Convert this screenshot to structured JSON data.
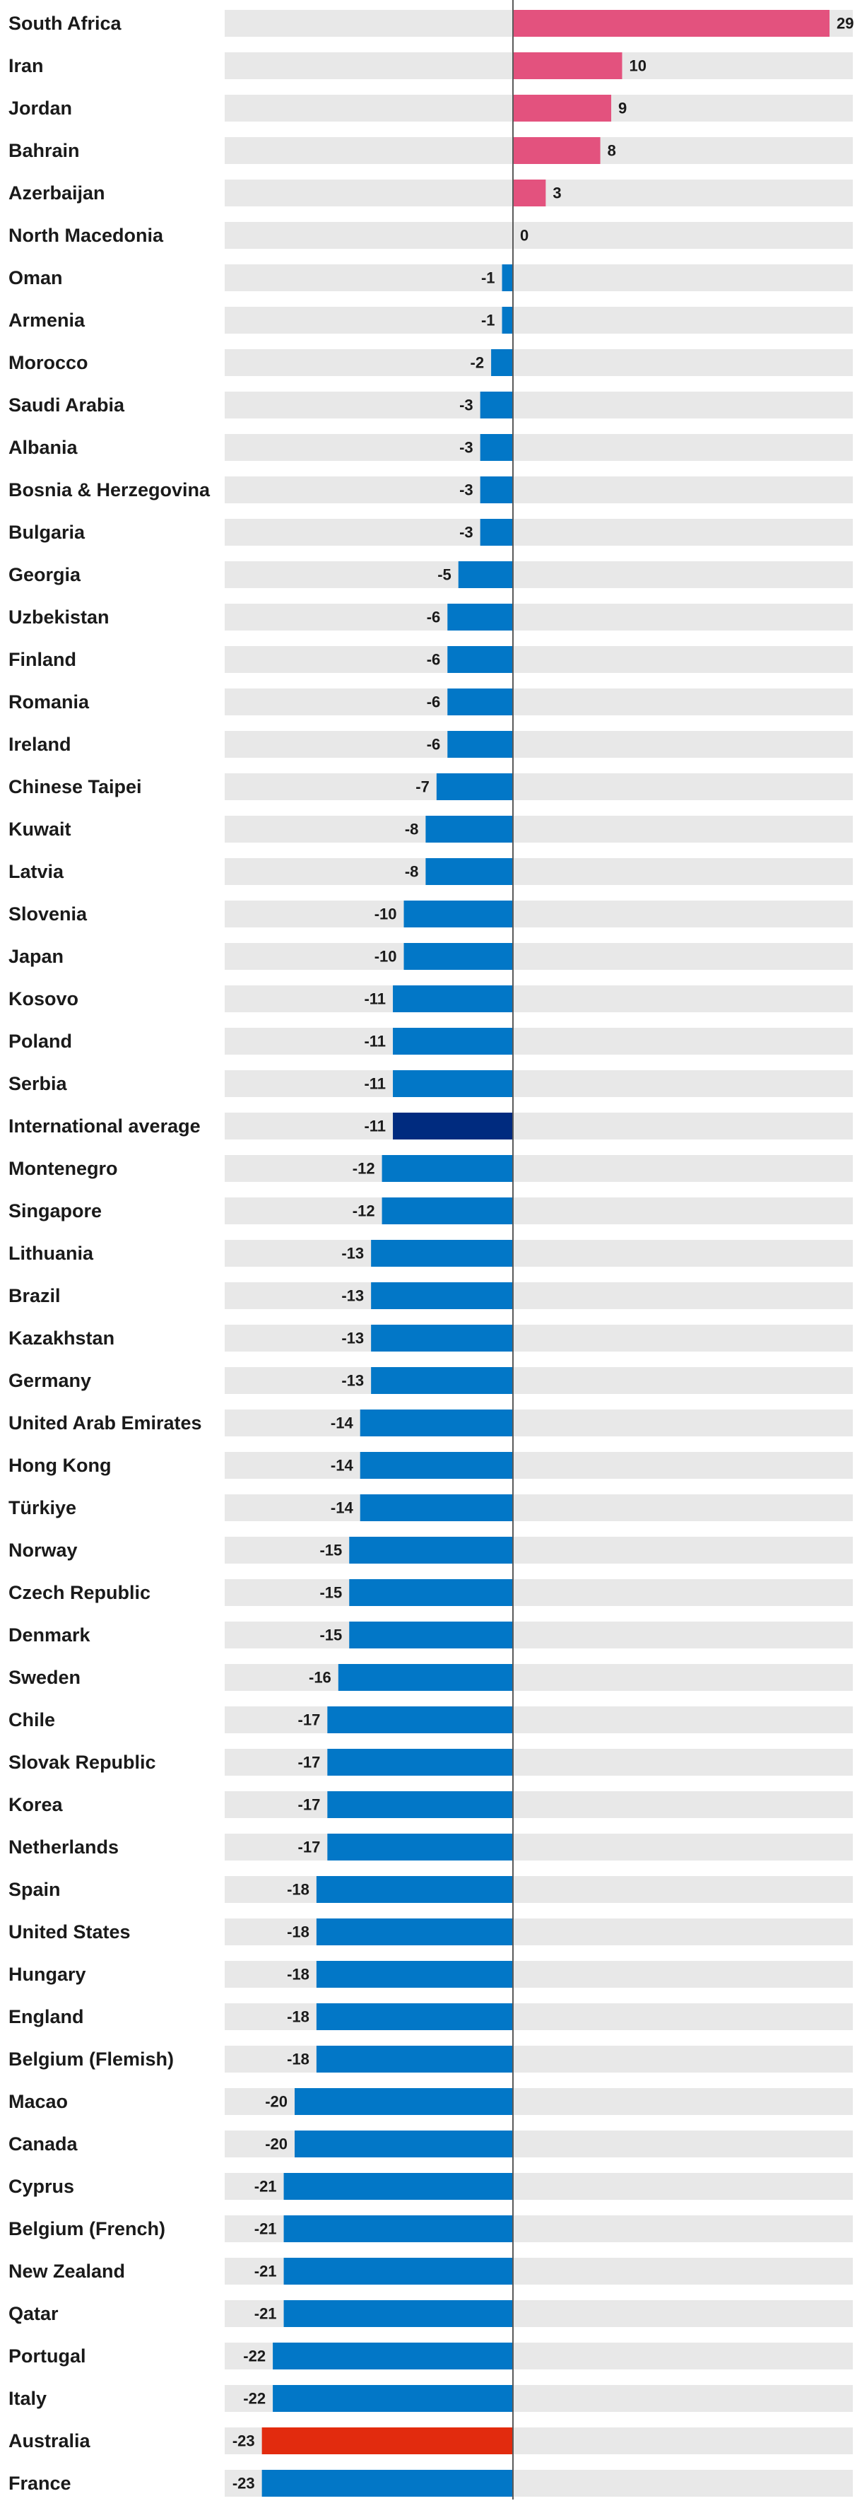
{
  "chart_data": {
    "type": "bar",
    "orientation": "horizontal",
    "xlim": [
      -27,
      31
    ],
    "colors": {
      "positive": "#e3527e",
      "negative": "#0277c7",
      "average": "#002b7f",
      "australia": "#e22b0e",
      "track": "#e8e8e8",
      "axis": "#5a5a5a",
      "text": "#1a1a1a"
    },
    "rows": [
      {
        "label": "South Africa",
        "value": 29,
        "highlight": "none"
      },
      {
        "label": "Iran",
        "value": 10,
        "highlight": "none"
      },
      {
        "label": "Jordan",
        "value": 9,
        "highlight": "none"
      },
      {
        "label": "Bahrain",
        "value": 8,
        "highlight": "none"
      },
      {
        "label": "Azerbaijan",
        "value": 3,
        "highlight": "none"
      },
      {
        "label": "North Macedonia",
        "value": 0,
        "highlight": "none"
      },
      {
        "label": "Oman",
        "value": -1,
        "highlight": "none"
      },
      {
        "label": "Armenia",
        "value": -1,
        "highlight": "none"
      },
      {
        "label": "Morocco",
        "value": -2,
        "highlight": "none"
      },
      {
        "label": "Saudi Arabia",
        "value": -3,
        "highlight": "none"
      },
      {
        "label": "Albania",
        "value": -3,
        "highlight": "none"
      },
      {
        "label": "Bosnia & Herzegovina",
        "value": -3,
        "highlight": "none"
      },
      {
        "label": "Bulgaria",
        "value": -3,
        "highlight": "none"
      },
      {
        "label": "Georgia",
        "value": -5,
        "highlight": "none"
      },
      {
        "label": "Uzbekistan",
        "value": -6,
        "highlight": "none"
      },
      {
        "label": "Finland",
        "value": -6,
        "highlight": "none"
      },
      {
        "label": "Romania",
        "value": -6,
        "highlight": "none"
      },
      {
        "label": "Ireland",
        "value": -6,
        "highlight": "none"
      },
      {
        "label": "Chinese Taipei",
        "value": -7,
        "highlight": "none"
      },
      {
        "label": "Kuwait",
        "value": -8,
        "highlight": "none"
      },
      {
        "label": "Latvia",
        "value": -8,
        "highlight": "none"
      },
      {
        "label": "Slovenia",
        "value": -10,
        "highlight": "none"
      },
      {
        "label": "Japan",
        "value": -10,
        "highlight": "none"
      },
      {
        "label": "Kosovo",
        "value": -11,
        "highlight": "none"
      },
      {
        "label": "Poland",
        "value": -11,
        "highlight": "none"
      },
      {
        "label": "Serbia",
        "value": -11,
        "highlight": "none"
      },
      {
        "label": "International average",
        "value": -11,
        "highlight": "average"
      },
      {
        "label": "Montenegro",
        "value": -12,
        "highlight": "none"
      },
      {
        "label": "Singapore",
        "value": -12,
        "highlight": "none"
      },
      {
        "label": "Lithuania",
        "value": -13,
        "highlight": "none"
      },
      {
        "label": "Brazil",
        "value": -13,
        "highlight": "none"
      },
      {
        "label": "Kazakhstan",
        "value": -13,
        "highlight": "none"
      },
      {
        "label": "Germany",
        "value": -13,
        "highlight": "none"
      },
      {
        "label": "United Arab Emirates",
        "value": -14,
        "highlight": "none"
      },
      {
        "label": "Hong Kong",
        "value": -14,
        "highlight": "none"
      },
      {
        "label": "Türkiye",
        "value": -14,
        "highlight": "none"
      },
      {
        "label": "Norway",
        "value": -15,
        "highlight": "none"
      },
      {
        "label": "Czech Republic",
        "value": -15,
        "highlight": "none"
      },
      {
        "label": "Denmark",
        "value": -15,
        "highlight": "none"
      },
      {
        "label": "Sweden",
        "value": -16,
        "highlight": "none"
      },
      {
        "label": "Chile",
        "value": -17,
        "highlight": "none"
      },
      {
        "label": "Slovak Republic",
        "value": -17,
        "highlight": "none"
      },
      {
        "label": "Korea",
        "value": -17,
        "highlight": "none"
      },
      {
        "label": "Netherlands",
        "value": -17,
        "highlight": "none"
      },
      {
        "label": "Spain",
        "value": -18,
        "highlight": "none"
      },
      {
        "label": "United States",
        "value": -18,
        "highlight": "none"
      },
      {
        "label": "Hungary",
        "value": -18,
        "highlight": "none"
      },
      {
        "label": "England",
        "value": -18,
        "highlight": "none"
      },
      {
        "label": "Belgium (Flemish)",
        "value": -18,
        "highlight": "none"
      },
      {
        "label": "Macao",
        "value": -20,
        "highlight": "none"
      },
      {
        "label": "Canada",
        "value": -20,
        "highlight": "none"
      },
      {
        "label": "Cyprus",
        "value": -21,
        "highlight": "none"
      },
      {
        "label": "Belgium (French)",
        "value": -21,
        "highlight": "none"
      },
      {
        "label": "New Zealand",
        "value": -21,
        "highlight": "none"
      },
      {
        "label": "Qatar",
        "value": -21,
        "highlight": "none"
      },
      {
        "label": "Portugal",
        "value": -22,
        "highlight": "none"
      },
      {
        "label": "Italy",
        "value": -22,
        "highlight": "none"
      },
      {
        "label": "Australia",
        "value": -23,
        "highlight": "australia"
      },
      {
        "label": "France",
        "value": -23,
        "highlight": "none"
      }
    ]
  }
}
